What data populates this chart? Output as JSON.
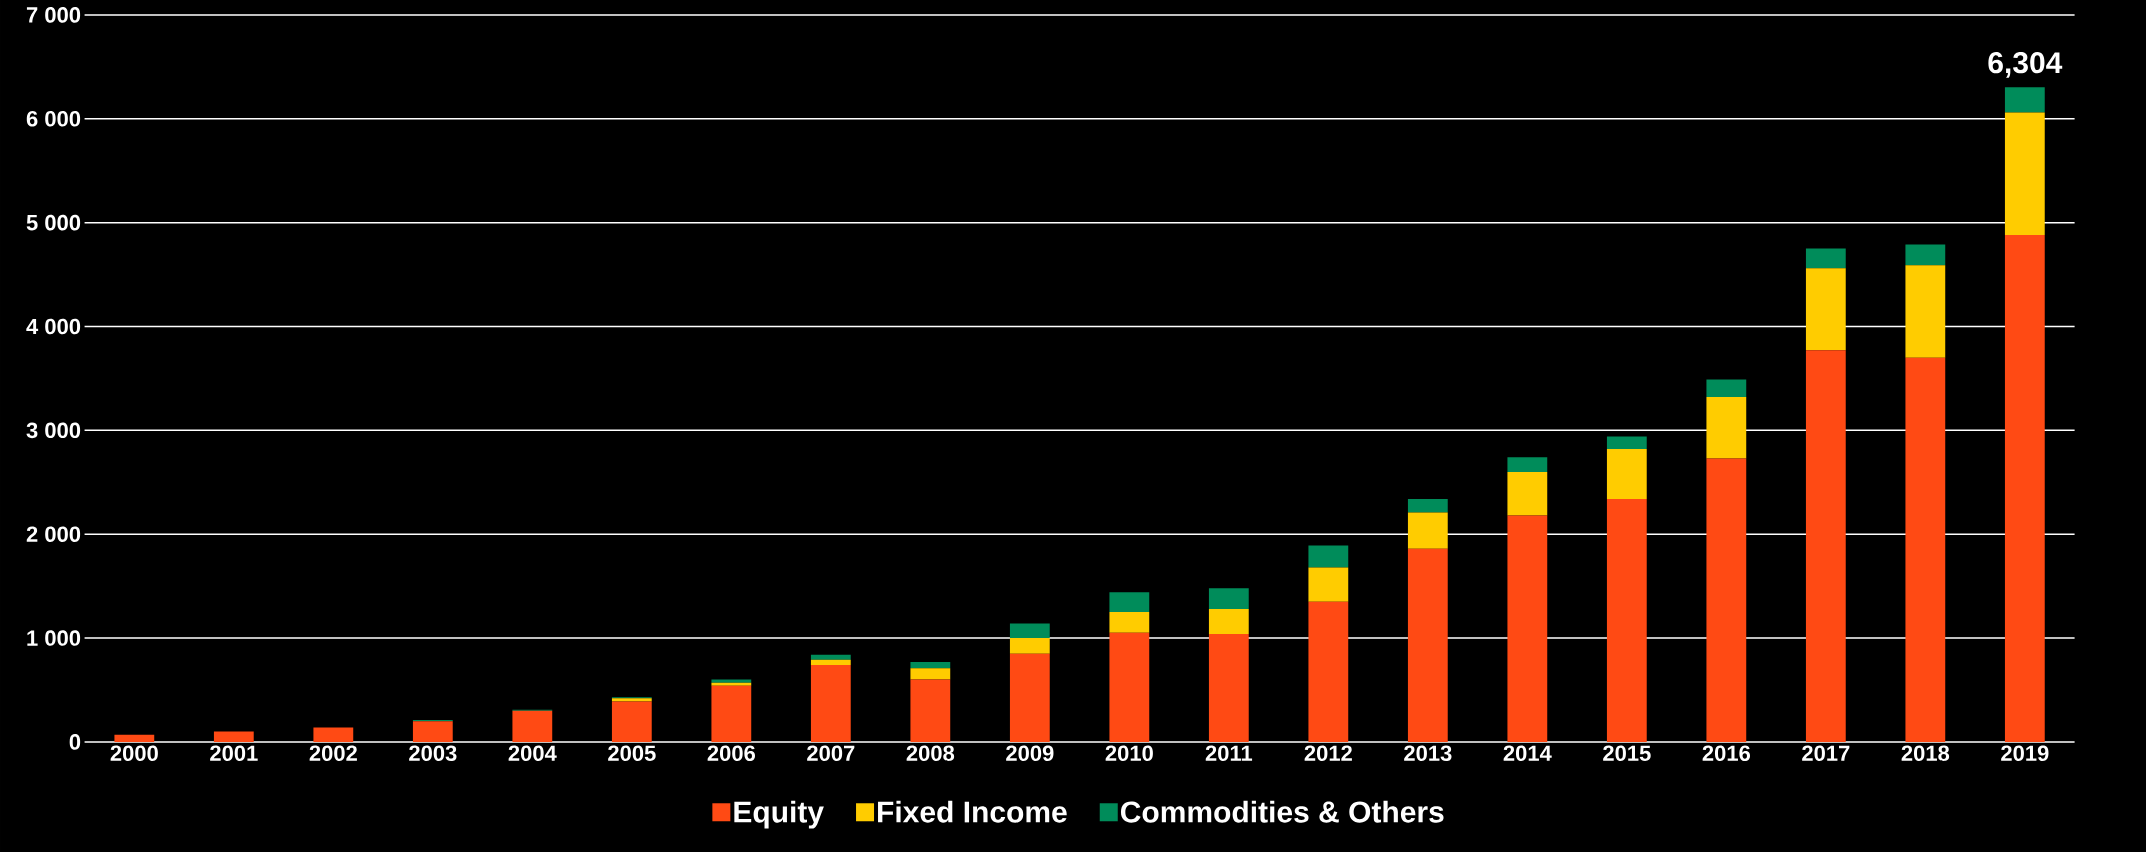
{
  "chart_data": {
    "type": "bar",
    "stacked": true,
    "categories": [
      "2000",
      "2001",
      "2002",
      "2003",
      "2004",
      "2005",
      "2006",
      "2007",
      "2008",
      "2009",
      "2010",
      "2011",
      "2012",
      "2013",
      "2014",
      "2015",
      "2016",
      "2017",
      "2018",
      "2019"
    ],
    "series": [
      {
        "name": "Equity",
        "color": "#ff4a14",
        "values": [
          70,
          100,
          140,
          200,
          300,
          390,
          540,
          740,
          600,
          850,
          1050,
          1040,
          1350,
          1860,
          2180,
          2340,
          2730,
          3770,
          3700,
          4880
        ]
      },
      {
        "name": "Fixed Income",
        "color": "#ffcc00",
        "values": [
          0,
          0,
          0,
          0,
          0,
          30,
          30,
          50,
          110,
          150,
          200,
          240,
          330,
          350,
          420,
          480,
          590,
          790,
          890,
          1180
        ]
      },
      {
        "name": "Commodities & Others",
        "color": "#008c5a",
        "values": [
          0,
          0,
          0,
          10,
          10,
          10,
          30,
          50,
          60,
          140,
          190,
          200,
          210,
          130,
          140,
          120,
          170,
          190,
          200,
          244
        ]
      }
    ],
    "totals": [
      null,
      null,
      null,
      null,
      null,
      null,
      null,
      null,
      null,
      null,
      null,
      null,
      null,
      null,
      null,
      null,
      null,
      null,
      null,
      "6,304"
    ],
    "ylim": [
      0,
      7000
    ],
    "yticks": [
      0,
      {
        "value": 1000,
        "label": "1 000"
      },
      {
        "value": 2000,
        "label": "2 000"
      },
      {
        "value": 3000,
        "label": "3 000"
      },
      {
        "value": 4000,
        "label": "4 000"
      },
      {
        "value": 5000,
        "label": "5 000"
      },
      {
        "value": 6000,
        "label": "6 000"
      },
      {
        "value": 7000,
        "label": "7 000"
      }
    ],
    "grid": "y",
    "legend": "bottom"
  }
}
